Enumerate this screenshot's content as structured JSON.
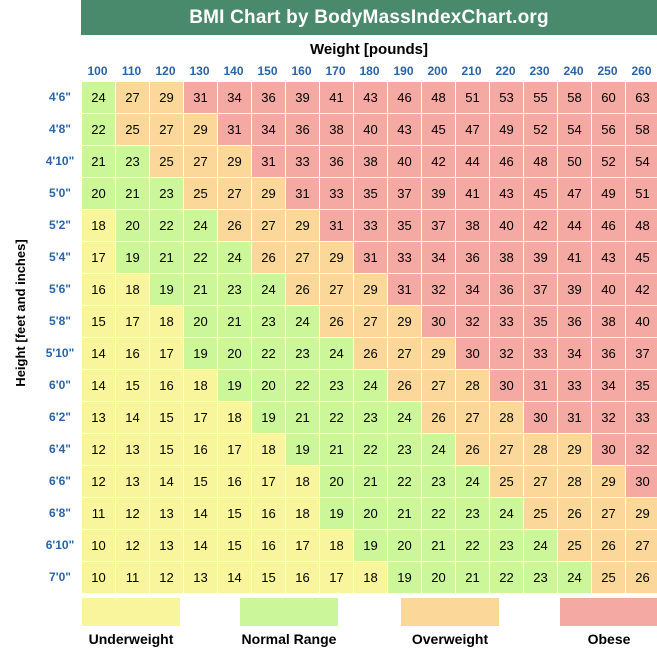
{
  "chart_data": {
    "type": "table",
    "title": "BMI Chart by BodyMassIndexChart.org",
    "xlabel": "Weight [pounds]",
    "ylabel": "Height [feet and inches]",
    "weights": [
      100,
      110,
      120,
      130,
      140,
      150,
      160,
      170,
      180,
      190,
      200,
      210,
      220,
      230,
      240,
      250,
      260
    ],
    "heights": [
      "4'6\"",
      "4'8\"",
      "4'10\"",
      "5'0\"",
      "5'2\"",
      "5'4\"",
      "5'6\"",
      "5'8\"",
      "5'10\"",
      "6'0\"",
      "6'2\"",
      "6'4\"",
      "6'6\"",
      "6'8\"",
      "6'10\"",
      "7'0\""
    ],
    "values": [
      [
        24,
        27,
        29,
        31,
        34,
        36,
        39,
        41,
        43,
        46,
        48,
        51,
        53,
        55,
        58,
        60,
        63
      ],
      [
        22,
        25,
        27,
        29,
        31,
        34,
        36,
        38,
        40,
        43,
        45,
        47,
        49,
        52,
        54,
        56,
        58
      ],
      [
        21,
        23,
        25,
        27,
        29,
        31,
        33,
        36,
        38,
        40,
        42,
        44,
        46,
        48,
        50,
        52,
        54
      ],
      [
        20,
        21,
        23,
        25,
        27,
        29,
        31,
        33,
        35,
        37,
        39,
        41,
        43,
        45,
        47,
        49,
        51
      ],
      [
        18,
        20,
        22,
        24,
        26,
        27,
        29,
        31,
        33,
        35,
        37,
        38,
        40,
        42,
        44,
        46,
        48
      ],
      [
        17,
        19,
        21,
        22,
        24,
        26,
        27,
        29,
        31,
        33,
        34,
        36,
        38,
        39,
        41,
        43,
        45
      ],
      [
        16,
        18,
        19,
        21,
        23,
        24,
        26,
        27,
        29,
        31,
        32,
        34,
        36,
        37,
        39,
        40,
        42
      ],
      [
        15,
        17,
        18,
        20,
        21,
        23,
        24,
        26,
        27,
        29,
        30,
        32,
        33,
        35,
        36,
        38,
        40
      ],
      [
        14,
        16,
        17,
        19,
        20,
        22,
        23,
        24,
        26,
        27,
        29,
        30,
        32,
        33,
        34,
        36,
        37
      ],
      [
        14,
        15,
        16,
        18,
        19,
        20,
        22,
        23,
        24,
        26,
        27,
        28,
        30,
        31,
        33,
        34,
        35
      ],
      [
        13,
        14,
        15,
        17,
        18,
        19,
        21,
        22,
        23,
        24,
        26,
        27,
        28,
        30,
        31,
        32,
        33
      ],
      [
        12,
        13,
        15,
        16,
        17,
        18,
        19,
        21,
        22,
        23,
        24,
        26,
        27,
        28,
        29,
        30,
        32
      ],
      [
        12,
        13,
        14,
        15,
        16,
        17,
        18,
        20,
        21,
        22,
        23,
        24,
        25,
        27,
        28,
        29,
        30
      ],
      [
        11,
        12,
        13,
        14,
        15,
        16,
        18,
        19,
        20,
        21,
        22,
        23,
        24,
        25,
        26,
        27,
        29
      ],
      [
        10,
        12,
        13,
        14,
        15,
        16,
        17,
        18,
        19,
        20,
        21,
        22,
        23,
        24,
        25,
        26,
        27
      ],
      [
        10,
        11,
        12,
        13,
        14,
        15,
        16,
        17,
        18,
        19,
        20,
        21,
        22,
        23,
        24,
        25,
        26
      ]
    ],
    "categories": [
      {
        "name": "Underweight",
        "max_bmi": 18,
        "color": "#f8f59c"
      },
      {
        "name": "Normal Range",
        "max_bmi": 24,
        "color": "#ccf69a"
      },
      {
        "name": "Overweight",
        "max_bmi": 29,
        "color": "#fbd89a"
      },
      {
        "name": "Obese",
        "max_bmi": 999,
        "color": "#f4aaa2"
      }
    ]
  },
  "header": {
    "title_color": "#4a8a6c",
    "axis_color": "#2a63a8"
  }
}
